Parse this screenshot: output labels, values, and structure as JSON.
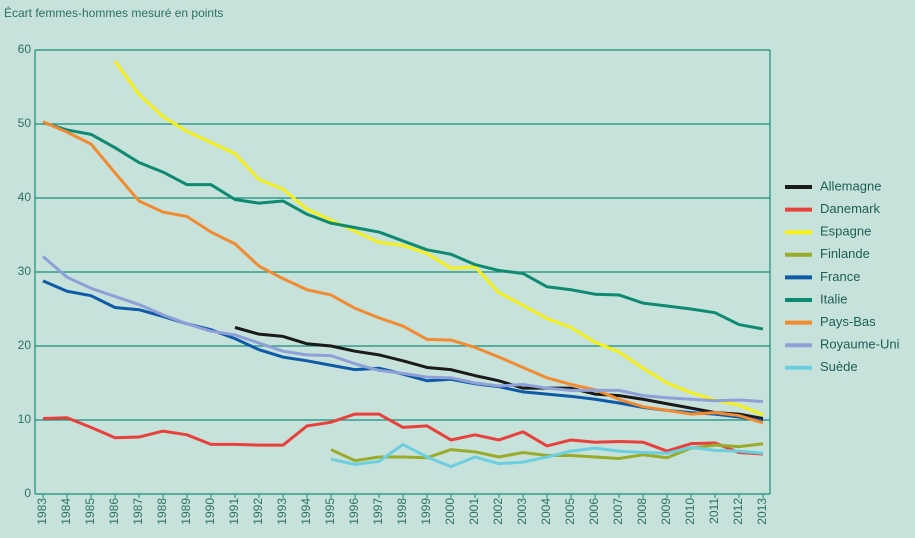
{
  "chart_data": {
    "type": "line",
    "y_label": "Écart femmes-hommes mesuré en points",
    "categories": [
      "1983",
      "1984",
      "1985",
      "1986",
      "1987",
      "1988",
      "1989",
      "1990",
      "1991",
      "1992",
      "1993",
      "1994",
      "1995",
      "1996",
      "1997",
      "1998",
      "1999",
      "2000",
      "2001",
      "2002",
      "2003",
      "2004",
      "2005",
      "2006",
      "2007",
      "2008",
      "2009",
      "2010",
      "2011",
      "2012",
      "2013"
    ],
    "ylim": [
      0,
      60
    ],
    "yticks": [
      0,
      10,
      20,
      30,
      40,
      50,
      60
    ],
    "grid": true,
    "legend": "right",
    "series": [
      {
        "name": "Allemagne",
        "color": "#1a1a1a",
        "values": [
          null,
          null,
          null,
          null,
          null,
          null,
          null,
          null,
          22.5,
          21.6,
          21.3,
          20.3,
          20.0,
          19.3,
          18.8,
          18.0,
          17.1,
          16.8,
          16.0,
          15.3,
          14.3,
          14.3,
          14.3,
          13.5,
          13.3,
          12.8,
          12.2,
          11.6,
          11.0,
          10.8,
          10.2
        ]
      },
      {
        "name": "Danemark",
        "color": "#e8403a",
        "values": [
          10.2,
          10.3,
          9.0,
          7.6,
          7.7,
          8.5,
          8.0,
          6.7,
          6.7,
          6.6,
          6.6,
          9.2,
          9.7,
          10.8,
          10.8,
          9.0,
          9.2,
          7.3,
          8.0,
          7.3,
          8.4,
          6.5,
          7.3,
          7.0,
          7.1,
          7.0,
          5.8,
          6.8,
          6.9,
          5.6,
          5.4
        ]
      },
      {
        "name": "Espagne",
        "color": "#f5ef1a",
        "values": [
          null,
          null,
          null,
          58.5,
          54.0,
          51.0,
          49.0,
          47.5,
          46.0,
          42.5,
          41.2,
          38.5,
          37.0,
          35.5,
          34.0,
          33.6,
          32.5,
          30.5,
          30.7,
          27.2,
          25.5,
          23.7,
          22.5,
          20.5,
          19.2,
          17.0,
          15.0,
          13.7,
          12.7,
          12.0,
          10.7
        ]
      },
      {
        "name": "Finlande",
        "color": "#9aab2a",
        "values": [
          null,
          null,
          null,
          null,
          null,
          null,
          null,
          null,
          null,
          null,
          null,
          null,
          6.0,
          4.5,
          5.0,
          5.0,
          4.9,
          6.0,
          5.7,
          5.0,
          5.6,
          5.2,
          5.2,
          5.0,
          4.8,
          5.3,
          4.9,
          6.2,
          6.6,
          6.4,
          6.8
        ]
      },
      {
        "name": "France",
        "color": "#0e5aa7",
        "values": [
          28.8,
          27.4,
          26.8,
          25.2,
          24.9,
          24.0,
          23.0,
          22.2,
          21.0,
          19.5,
          18.5,
          18.0,
          17.4,
          16.8,
          17.0,
          16.2,
          15.3,
          15.5,
          14.9,
          14.5,
          13.8,
          13.5,
          13.2,
          12.8,
          12.3,
          11.7,
          11.3,
          11.0,
          10.8,
          10.4,
          9.9
        ]
      },
      {
        "name": "Italie",
        "color": "#0e8a72",
        "values": [
          50.2,
          49.2,
          48.6,
          46.8,
          44.8,
          43.5,
          41.8,
          41.8,
          39.8,
          39.3,
          39.6,
          37.8,
          36.6,
          36.0,
          35.4,
          34.2,
          33.0,
          32.4,
          31.0,
          30.2,
          29.8,
          28.0,
          27.6,
          27.0,
          26.9,
          25.8,
          25.4,
          25.0,
          24.5,
          22.9,
          22.3
        ]
      },
      {
        "name": "Pays-Bas",
        "color": "#f28b30",
        "values": [
          50.3,
          48.9,
          47.3,
          43.4,
          39.6,
          38.1,
          37.5,
          35.4,
          33.8,
          30.8,
          29.1,
          27.6,
          26.9,
          25.1,
          23.8,
          22.7,
          20.9,
          20.8,
          19.8,
          18.5,
          17.1,
          15.7,
          14.8,
          14.1,
          12.8,
          11.8,
          11.3,
          10.8,
          11.0,
          10.6,
          9.6
        ]
      },
      {
        "name": "Royaume-Uni",
        "color": "#8f9fd8",
        "values": [
          32.1,
          29.3,
          27.8,
          26.7,
          25.6,
          24.2,
          23.0,
          22.0,
          21.5,
          20.4,
          19.3,
          18.8,
          18.7,
          17.6,
          16.7,
          16.3,
          15.8,
          15.7,
          15.0,
          14.6,
          14.8,
          14.3,
          14.0,
          14.0,
          14.0,
          13.3,
          13.0,
          12.8,
          12.6,
          12.7,
          12.5
        ]
      },
      {
        "name": "Suède",
        "color": "#6ccfe0",
        "values": [
          null,
          null,
          null,
          null,
          null,
          null,
          null,
          null,
          null,
          null,
          null,
          null,
          4.7,
          4.0,
          4.4,
          6.7,
          5.0,
          3.7,
          5.0,
          4.1,
          4.3,
          5.0,
          5.8,
          6.2,
          5.8,
          5.6,
          5.5,
          6.3,
          5.9,
          5.8,
          5.5
        ]
      }
    ]
  }
}
